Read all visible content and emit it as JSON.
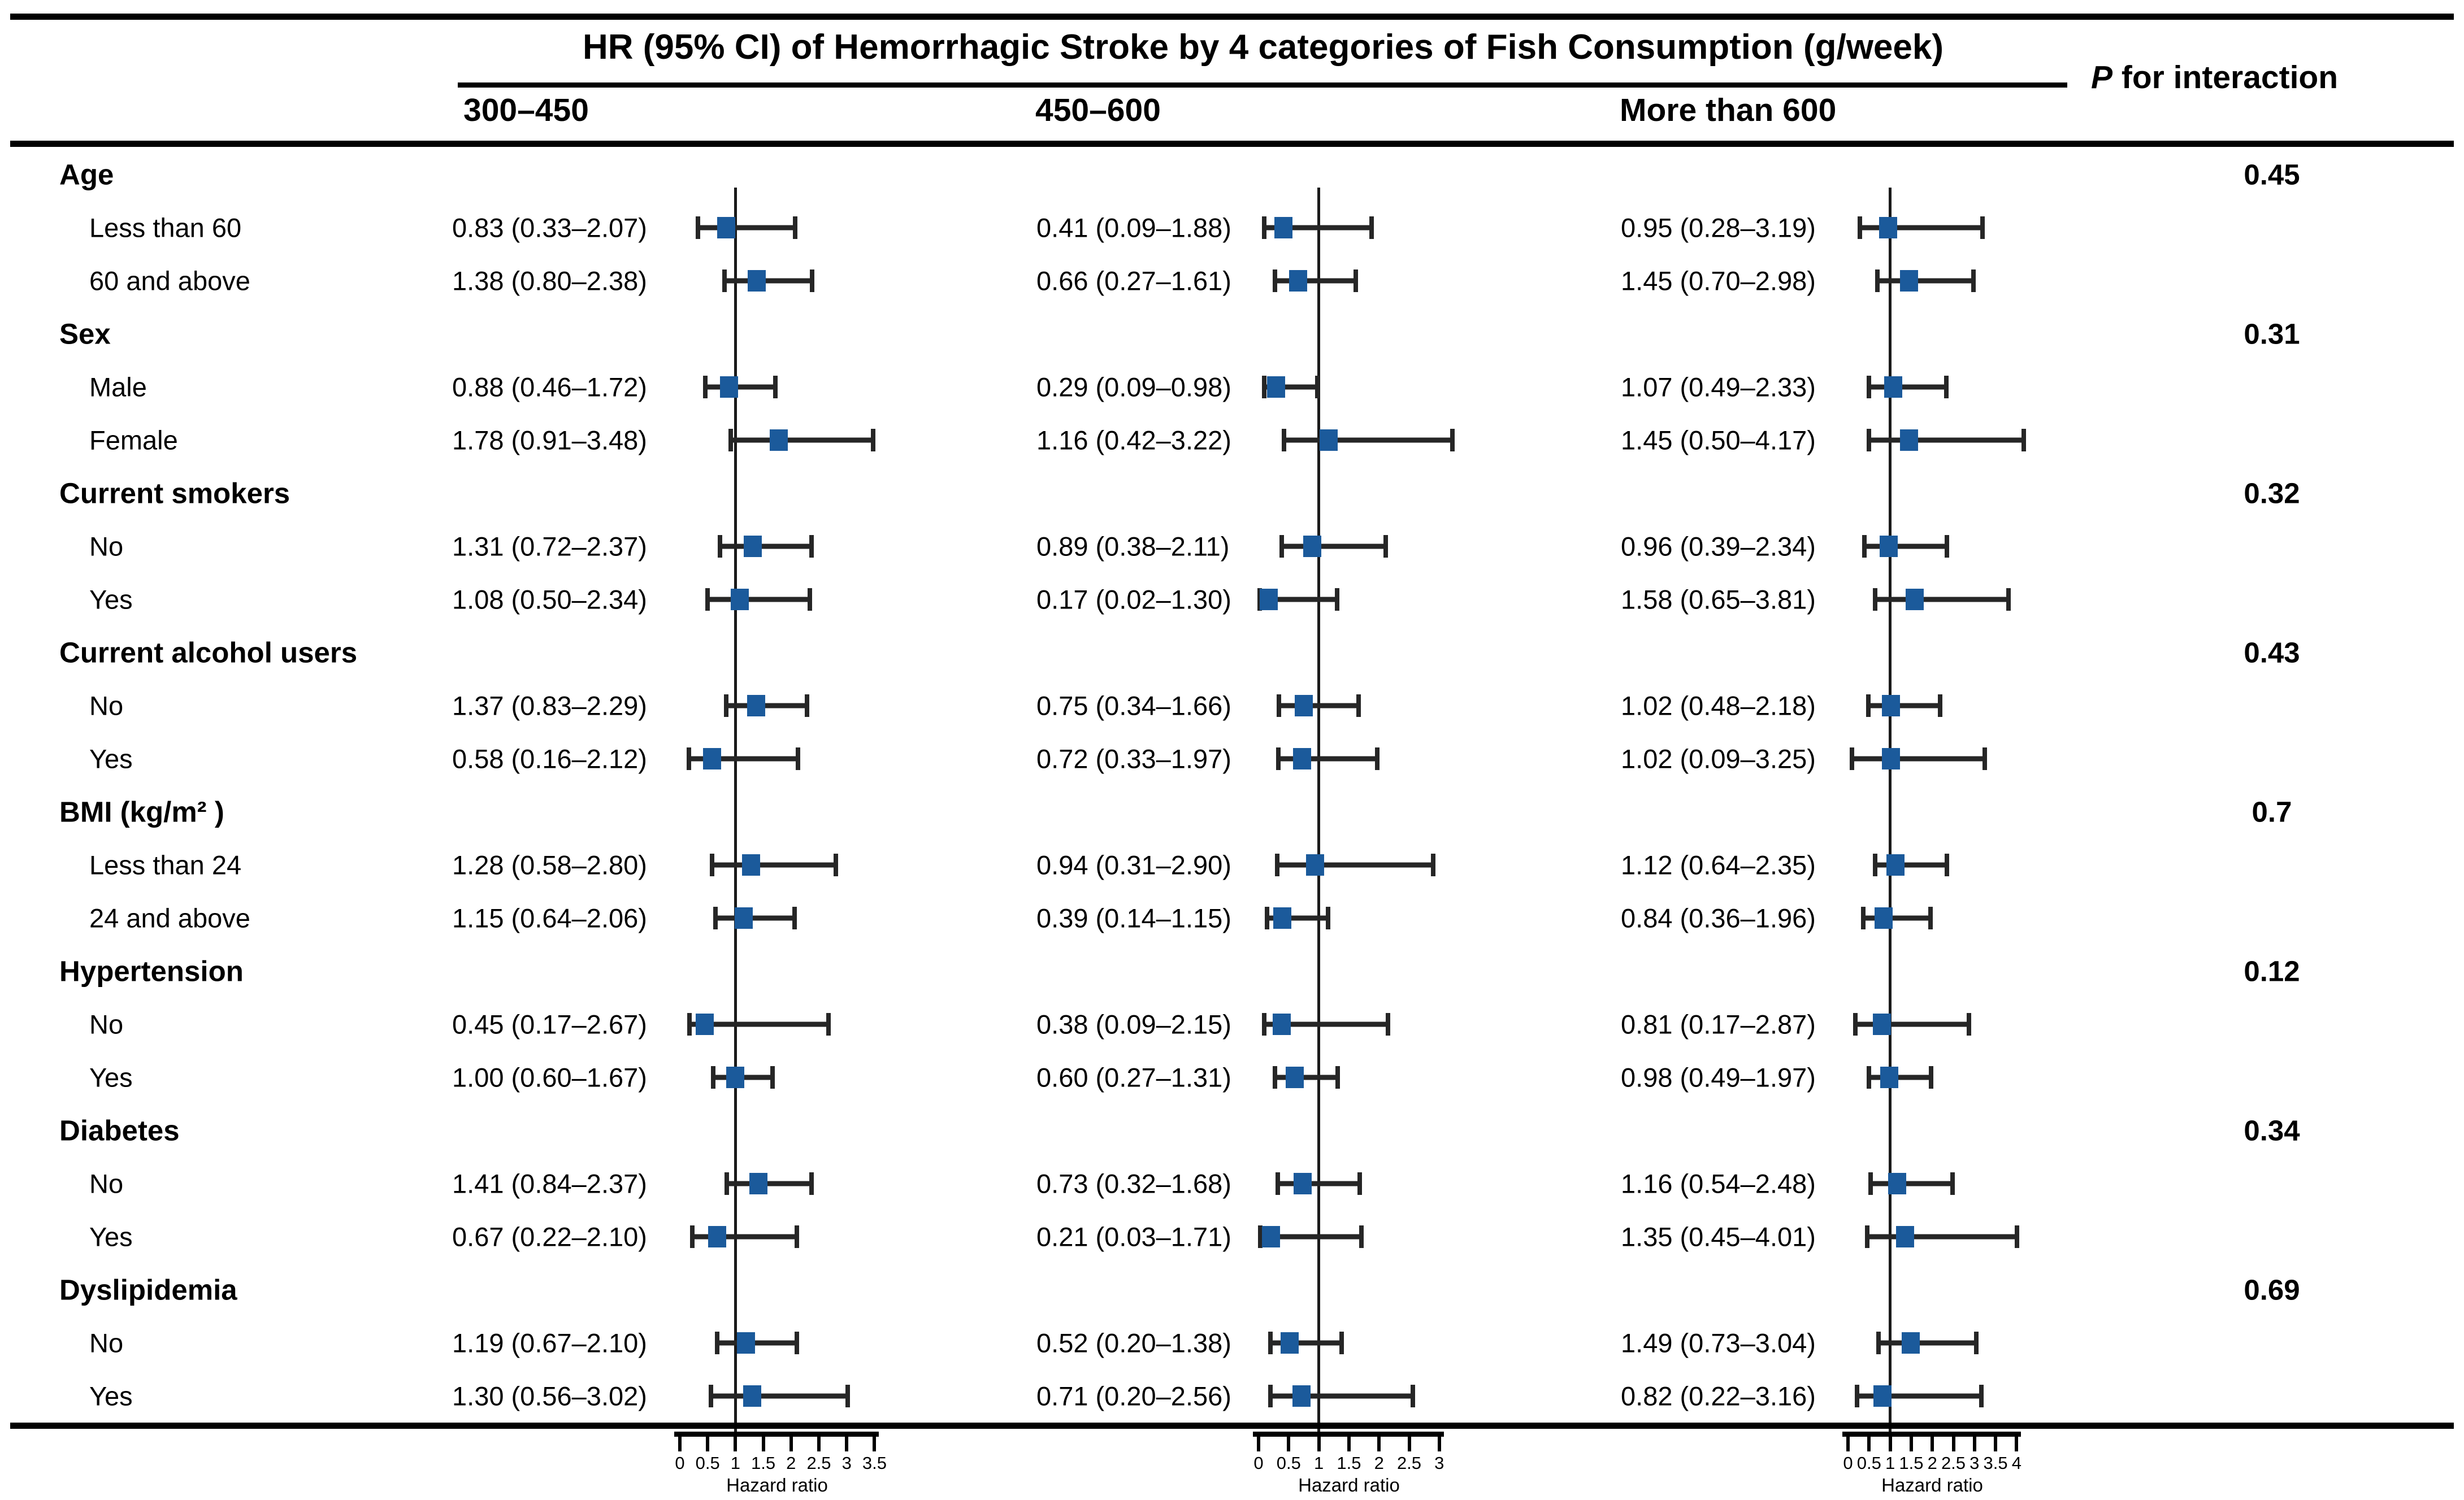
{
  "chart_data": {
    "type": "scatter",
    "subtype": "forest-plot",
    "title": "HR (95% CI) of Hemorrhagic Stroke by 4 categories of Fish Consumption (g/week)",
    "p_header": {
      "italic": "P",
      "rest": " for interaction"
    },
    "xlabel": "Hazard ratio",
    "colors": {
      "marker": "#1b5a9b",
      "ci_bar": "#262626",
      "reference_line": "#1a1a1a"
    },
    "columns": [
      {
        "label": "300–450",
        "axis": {
          "min": 0,
          "max": 3.5,
          "step": 0.5,
          "refline": 1,
          "ticks": [
            "0",
            "0.5",
            "1",
            "1.5",
            "2",
            "2.5",
            "3",
            "3.5"
          ]
        }
      },
      {
        "label": "450–600",
        "axis": {
          "min": 0,
          "max": 3,
          "step": 0.5,
          "refline": 1,
          "ticks": [
            "0",
            "0.5",
            "1",
            "1.5",
            "2",
            "2.5",
            "3"
          ]
        }
      },
      {
        "label": "More than 600",
        "axis": {
          "min": 0,
          "max": 4,
          "step": 0.5,
          "refline": 1,
          "ticks": [
            "0",
            "0.5",
            "1",
            "1.5",
            "2",
            "2.5",
            "3",
            "3.5",
            "4"
          ]
        }
      }
    ],
    "groups": [
      {
        "label": "Age",
        "p": "0.45",
        "rows": [
          {
            "label": "Less than 60",
            "estimates": [
              {
                "text": "0.83 (0.33–2.07)",
                "hr": 0.83,
                "lo": 0.33,
                "hi": 2.07
              },
              {
                "text": "0.41 (0.09–1.88)",
                "hr": 0.41,
                "lo": 0.09,
                "hi": 1.88
              },
              {
                "text": "0.95 (0.28–3.19)",
                "hr": 0.95,
                "lo": 0.28,
                "hi": 3.19
              }
            ]
          },
          {
            "label": "60 and above",
            "estimates": [
              {
                "text": "1.38 (0.80–2.38)",
                "hr": 1.38,
                "lo": 0.8,
                "hi": 2.38
              },
              {
                "text": "0.66 (0.27–1.61)",
                "hr": 0.66,
                "lo": 0.27,
                "hi": 1.61
              },
              {
                "text": "1.45 (0.70–2.98)",
                "hr": 1.45,
                "lo": 0.7,
                "hi": 2.98
              }
            ]
          }
        ]
      },
      {
        "label": "Sex",
        "p": "0.31",
        "rows": [
          {
            "label": "Male",
            "estimates": [
              {
                "text": "0.88 (0.46–1.72)",
                "hr": 0.88,
                "lo": 0.46,
                "hi": 1.72
              },
              {
                "text": "0.29 (0.09–0.98)",
                "hr": 0.29,
                "lo": 0.09,
                "hi": 0.98
              },
              {
                "text": "1.07 (0.49–2.33)",
                "hr": 1.07,
                "lo": 0.49,
                "hi": 2.33
              }
            ]
          },
          {
            "label": "Female",
            "estimates": [
              {
                "text": "1.78 (0.91–3.48)",
                "hr": 1.78,
                "lo": 0.91,
                "hi": 3.48
              },
              {
                "text": "1.16 (0.42–3.22)",
                "hr": 1.16,
                "lo": 0.42,
                "hi": 3.22
              },
              {
                "text": "1.45 (0.50–4.17)",
                "hr": 1.45,
                "lo": 0.5,
                "hi": 4.17
              }
            ]
          }
        ]
      },
      {
        "label": "Current smokers",
        "p": "0.32",
        "rows": [
          {
            "label": "No",
            "estimates": [
              {
                "text": "1.31 (0.72–2.37)",
                "hr": 1.31,
                "lo": 0.72,
                "hi": 2.37
              },
              {
                "text": "0.89 (0.38–2.11)",
                "hr": 0.89,
                "lo": 0.38,
                "hi": 2.11
              },
              {
                "text": "0.96 (0.39–2.34)",
                "hr": 0.96,
                "lo": 0.39,
                "hi": 2.34
              }
            ]
          },
          {
            "label": "Yes",
            "estimates": [
              {
                "text": "1.08 (0.50–2.34)",
                "hr": 1.08,
                "lo": 0.5,
                "hi": 2.34
              },
              {
                "text": "0.17 (0.02–1.30)",
                "hr": 0.17,
                "lo": 0.02,
                "hi": 1.3
              },
              {
                "text": "1.58 (0.65–3.81)",
                "hr": 1.58,
                "lo": 0.65,
                "hi": 3.81
              }
            ]
          }
        ]
      },
      {
        "label": "Current alcohol users",
        "p": "0.43",
        "rows": [
          {
            "label": "No",
            "estimates": [
              {
                "text": "1.37 (0.83–2.29)",
                "hr": 1.37,
                "lo": 0.83,
                "hi": 2.29
              },
              {
                "text": "0.75 (0.34–1.66)",
                "hr": 0.75,
                "lo": 0.34,
                "hi": 1.66
              },
              {
                "text": "1.02 (0.48–2.18)",
                "hr": 1.02,
                "lo": 0.48,
                "hi": 2.18
              }
            ]
          },
          {
            "label": "Yes",
            "estimates": [
              {
                "text": "0.58 (0.16–2.12)",
                "hr": 0.58,
                "lo": 0.16,
                "hi": 2.12
              },
              {
                "text": "0.72 (0.33–1.97)",
                "hr": 0.72,
                "lo": 0.33,
                "hi": 1.97
              },
              {
                "text": "1.02 (0.09–3.25)",
                "hr": 1.02,
                "lo": 0.09,
                "hi": 3.25
              }
            ]
          }
        ]
      },
      {
        "label": "BMI (kg/m² )",
        "p": "0.7",
        "rows": [
          {
            "label": "Less than 24",
            "estimates": [
              {
                "text": "1.28 (0.58–2.80)",
                "hr": 1.28,
                "lo": 0.58,
                "hi": 2.8
              },
              {
                "text": "0.94 (0.31–2.90)",
                "hr": 0.94,
                "lo": 0.31,
                "hi": 2.9
              },
              {
                "text": "1.12 (0.64–2.35)",
                "hr": 1.12,
                "lo": 0.64,
                "hi": 2.35
              }
            ]
          },
          {
            "label": "24 and above",
            "estimates": [
              {
                "text": "1.15 (0.64–2.06)",
                "hr": 1.15,
                "lo": 0.64,
                "hi": 2.06
              },
              {
                "text": "0.39 (0.14–1.15)",
                "hr": 0.39,
                "lo": 0.14,
                "hi": 1.15
              },
              {
                "text": "0.84 (0.36–1.96)",
                "hr": 0.84,
                "lo": 0.36,
                "hi": 1.96
              }
            ]
          }
        ]
      },
      {
        "label": "Hypertension",
        "p": "0.12",
        "rows": [
          {
            "label": "No",
            "estimates": [
              {
                "text": "0.45 (0.17–2.67)",
                "hr": 0.45,
                "lo": 0.17,
                "hi": 2.67
              },
              {
                "text": "0.38 (0.09–2.15)",
                "hr": 0.38,
                "lo": 0.09,
                "hi": 2.15
              },
              {
                "text": "0.81 (0.17–2.87)",
                "hr": 0.81,
                "lo": 0.17,
                "hi": 2.87
              }
            ]
          },
          {
            "label": "Yes",
            "estimates": [
              {
                "text": "1.00 (0.60–1.67)",
                "hr": 1.0,
                "lo": 0.6,
                "hi": 1.67
              },
              {
                "text": "0.60 (0.27–1.31)",
                "hr": 0.6,
                "lo": 0.27,
                "hi": 1.31
              },
              {
                "text": "0.98 (0.49–1.97)",
                "hr": 0.98,
                "lo": 0.49,
                "hi": 1.97
              }
            ]
          }
        ]
      },
      {
        "label": "Diabetes",
        "p": "0.34",
        "rows": [
          {
            "label": "No",
            "estimates": [
              {
                "text": "1.41 (0.84–2.37)",
                "hr": 1.41,
                "lo": 0.84,
                "hi": 2.37
              },
              {
                "text": "0.73 (0.32–1.68)",
                "hr": 0.73,
                "lo": 0.32,
                "hi": 1.68
              },
              {
                "text": "1.16 (0.54–2.48)",
                "hr": 1.16,
                "lo": 0.54,
                "hi": 2.48
              }
            ]
          },
          {
            "label": "Yes",
            "estimates": [
              {
                "text": "0.67 (0.22–2.10)",
                "hr": 0.67,
                "lo": 0.22,
                "hi": 2.1
              },
              {
                "text": "0.21 (0.03–1.71)",
                "hr": 0.21,
                "lo": 0.03,
                "hi": 1.71
              },
              {
                "text": "1.35 (0.45–4.01)",
                "hr": 1.35,
                "lo": 0.45,
                "hi": 4.01
              }
            ]
          }
        ]
      },
      {
        "label": "Dyslipidemia",
        "p": "0.69",
        "rows": [
          {
            "label": "No",
            "estimates": [
              {
                "text": "1.19 (0.67–2.10)",
                "hr": 1.19,
                "lo": 0.67,
                "hi": 2.1
              },
              {
                "text": "0.52 (0.20–1.38)",
                "hr": 0.52,
                "lo": 0.2,
                "hi": 1.38
              },
              {
                "text": "1.49 (0.73–3.04)",
                "hr": 1.49,
                "lo": 0.73,
                "hi": 3.04
              }
            ]
          },
          {
            "label": "Yes",
            "estimates": [
              {
                "text": "1.30 (0.56–3.02)",
                "hr": 1.3,
                "lo": 0.56,
                "hi": 3.02
              },
              {
                "text": "0.71 (0.20–2.56)",
                "hr": 0.71,
                "lo": 0.2,
                "hi": 2.56
              },
              {
                "text": "0.82 (0.22–3.16)",
                "hr": 0.82,
                "lo": 0.22,
                "hi": 3.16
              }
            ]
          }
        ]
      }
    ]
  }
}
